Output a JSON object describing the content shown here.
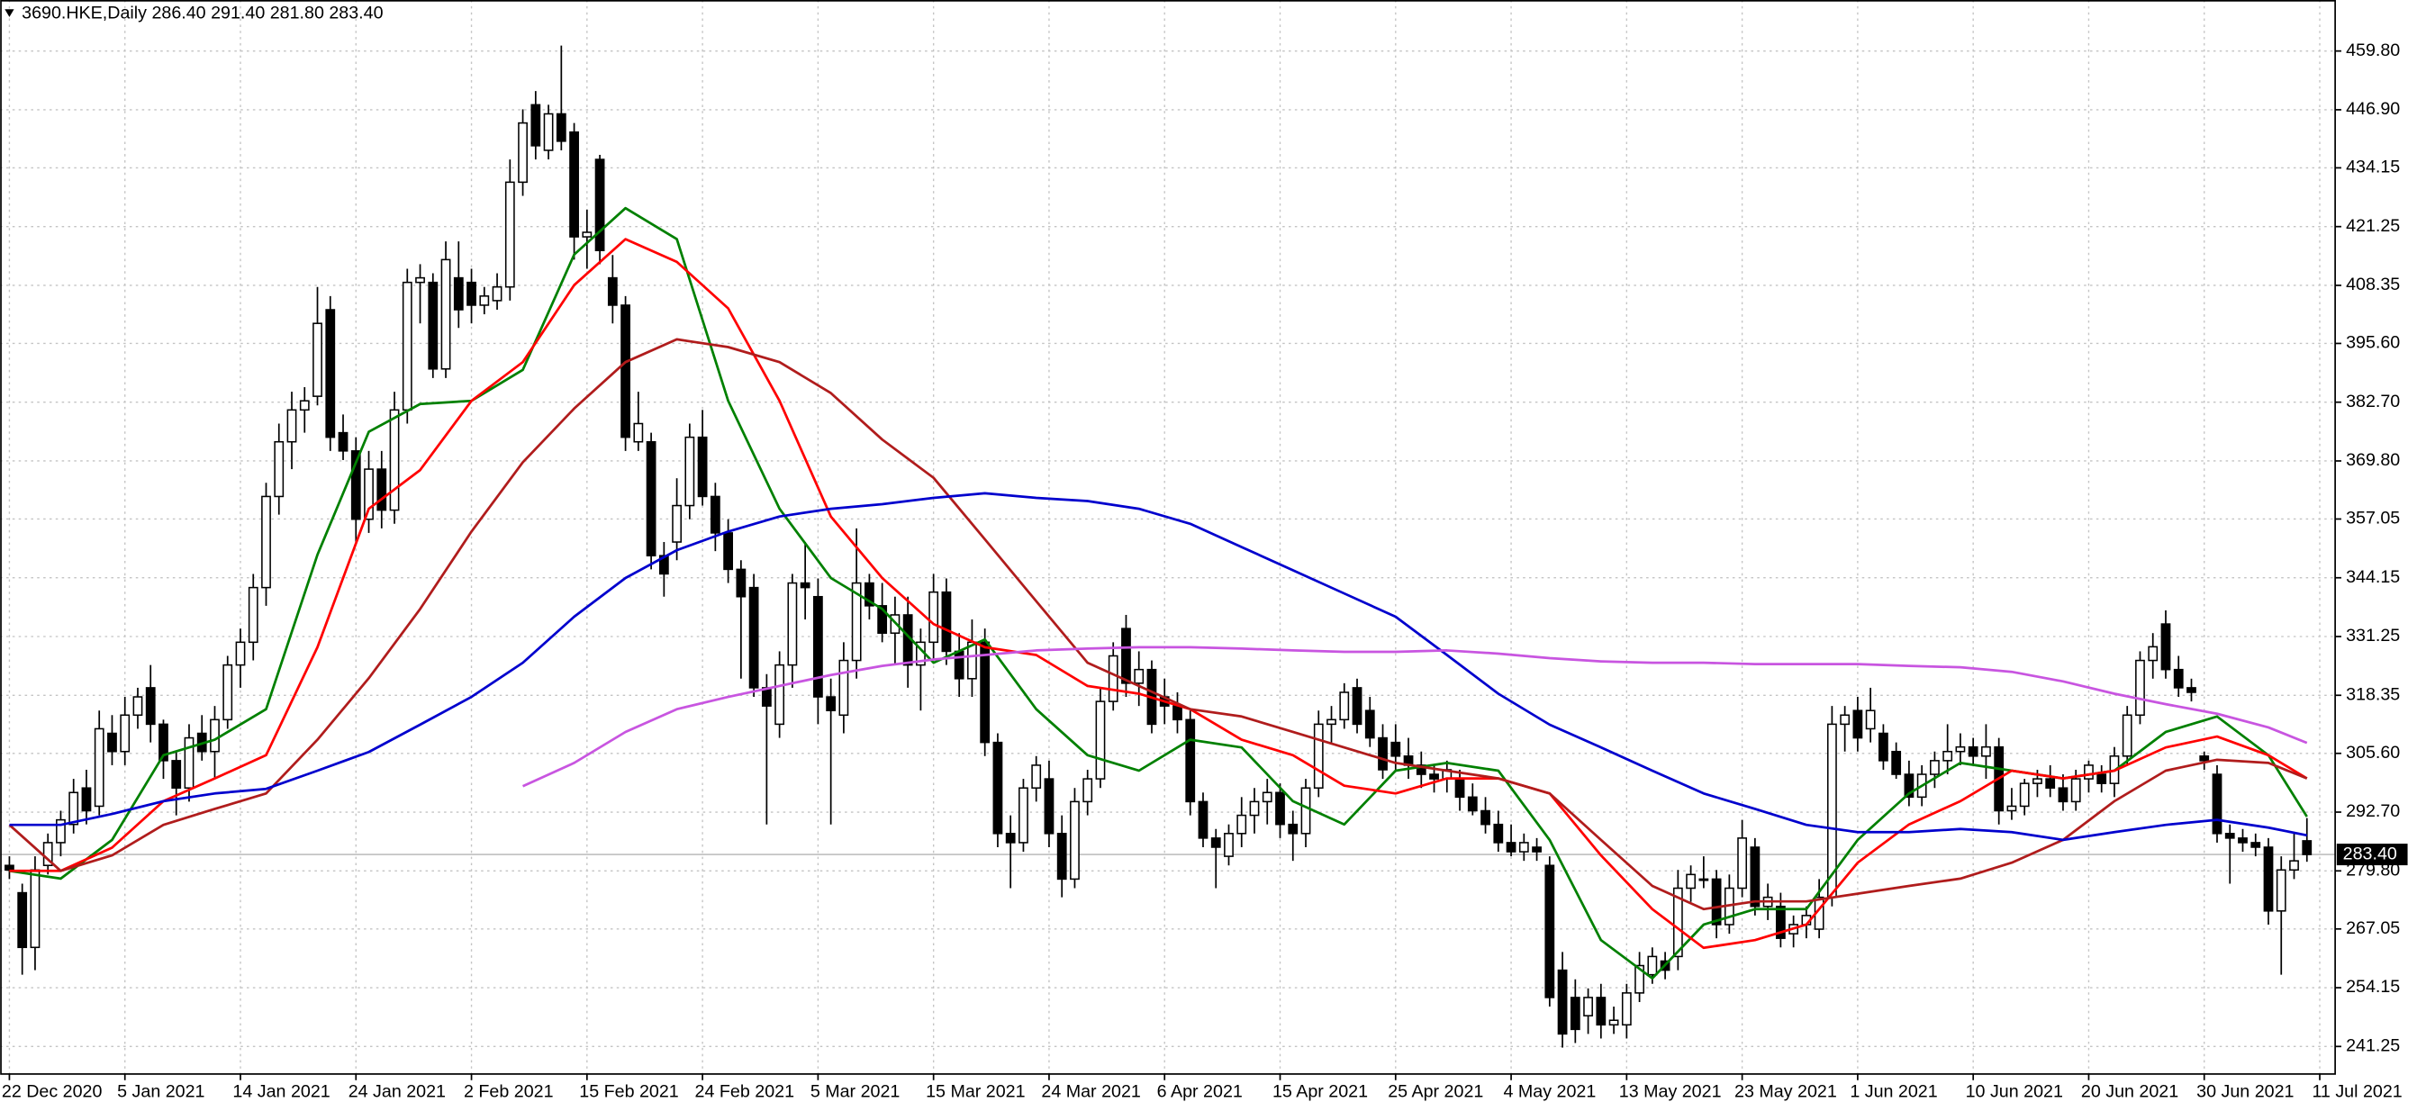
{
  "chart_data": {
    "type": "candlestick",
    "title": "3690.HKE,Daily  286.40 291.40 281.80 283.40",
    "open": [
      281,
      275,
      263,
      281,
      286,
      290,
      298,
      294,
      310,
      306,
      314,
      320,
      312,
      304,
      298,
      310,
      306,
      313,
      325,
      330,
      342,
      362,
      374,
      381,
      384,
      403,
      376,
      372,
      357,
      368,
      359,
      381,
      409,
      409,
      390,
      410,
      409,
      404,
      405,
      408,
      431,
      448,
      438,
      446,
      442,
      419,
      436,
      410,
      404,
      374,
      374,
      349,
      352,
      360,
      375,
      362,
      354,
      346,
      342,
      320,
      312,
      325,
      343,
      340,
      318,
      314,
      326,
      343,
      338,
      332,
      336,
      325,
      330,
      341,
      328,
      322,
      330,
      308,
      288,
      286,
      298,
      300,
      288,
      278,
      295,
      300,
      317,
      333,
      321,
      324,
      318,
      316,
      313,
      295,
      287,
      283,
      288,
      292,
      295,
      297,
      290,
      288,
      298,
      312,
      313,
      320,
      315,
      309,
      308,
      305,
      303,
      301,
      300,
      300,
      296,
      293,
      290,
      286,
      284,
      285,
      281,
      258,
      252,
      248,
      252,
      246,
      246,
      253,
      257,
      260,
      261,
      276,
      278,
      278,
      268,
      276,
      285,
      272,
      272,
      266,
      268,
      267,
      274,
      312,
      315,
      311,
      310,
      306,
      301,
      296,
      301,
      304,
      306,
      307,
      305,
      307,
      293,
      294,
      299,
      300,
      298,
      295,
      300,
      301,
      299,
      305,
      314,
      326,
      334,
      324,
      320,
      305,
      301,
      288,
      287,
      286,
      285,
      271,
      280,
      286.4
    ],
    "high": [
      283,
      277,
      283,
      288,
      293,
      300,
      302,
      315,
      314,
      318,
      320,
      325,
      313,
      306,
      312,
      314,
      316,
      327,
      333,
      345,
      365,
      378,
      385,
      386,
      408,
      406,
      380,
      375,
      372,
      372,
      385,
      412,
      413,
      411,
      418,
      418,
      412,
      408,
      411,
      436,
      447,
      451,
      448,
      461,
      444,
      425,
      437,
      415,
      406,
      385,
      376,
      352,
      366,
      378,
      381,
      365,
      357,
      348,
      345,
      323,
      328,
      345,
      352,
      344,
      322,
      330,
      355,
      345,
      343,
      340,
      340,
      333,
      345,
      344,
      332,
      335,
      333,
      310,
      292,
      300,
      305,
      304,
      292,
      298,
      302,
      320,
      330,
      336,
      328,
      326,
      322,
      319,
      315,
      297,
      289,
      290,
      296,
      298,
      300,
      299,
      293,
      300,
      315,
      316,
      321,
      322,
      318,
      312,
      312,
      309,
      306,
      303,
      304,
      302,
      299,
      296,
      293,
      290,
      288,
      287,
      283,
      262,
      256,
      254,
      255,
      250,
      255,
      262,
      263,
      262,
      280,
      281,
      283,
      280,
      279,
      291,
      287,
      277,
      275,
      270,
      272,
      278,
      316,
      316,
      318,
      320,
      312,
      308,
      304,
      303,
      306,
      312,
      310,
      309,
      312,
      309,
      298,
      300,
      302,
      303,
      301,
      302,
      304,
      303,
      307,
      316,
      328,
      332,
      337,
      327,
      322,
      306,
      303,
      290,
      289,
      288,
      287,
      283,
      288,
      291.4
    ],
    "low": [
      278,
      257,
      258,
      279,
      283,
      288,
      290,
      292,
      303,
      303,
      311,
      308,
      300,
      292,
      295,
      304,
      300,
      311,
      320,
      326,
      338,
      358,
      368,
      376,
      382,
      372,
      370,
      352,
      354,
      355,
      356,
      378,
      400,
      388,
      388,
      399,
      400,
      402,
      403,
      405,
      428,
      436,
      436,
      438,
      414,
      412,
      413,
      400,
      372,
      372,
      346,
      340,
      348,
      357,
      360,
      350,
      343,
      322,
      318,
      290,
      309,
      320,
      335,
      312,
      290,
      310,
      322,
      335,
      330,
      325,
      320,
      315,
      326,
      325,
      318,
      318,
      305,
      285,
      276,
      284,
      295,
      285,
      274,
      276,
      292,
      298,
      315,
      318,
      316,
      310,
      312,
      310,
      292,
      285,
      276,
      281,
      285,
      288,
      290,
      287,
      282,
      285,
      296,
      308,
      311,
      310,
      307,
      300,
      302,
      300,
      298,
      297,
      297,
      293,
      292,
      288,
      284,
      283,
      282,
      282,
      250,
      241,
      242,
      244,
      243,
      244,
      243,
      251,
      255,
      256,
      258,
      273,
      276,
      265,
      266,
      274,
      270,
      269,
      263,
      263,
      265,
      265,
      272,
      306,
      306,
      308,
      302,
      300,
      294,
      294,
      298,
      301,
      303,
      303,
      300,
      290,
      291,
      292,
      296,
      296,
      293,
      293,
      297,
      297,
      296,
      303,
      312,
      322,
      322,
      318,
      317,
      302,
      286,
      277,
      284,
      283,
      268,
      257,
      278,
      281.8
    ],
    "close": [
      280,
      263,
      280,
      286,
      291,
      297,
      293,
      311,
      306,
      314,
      318,
      312,
      304,
      298,
      309,
      306,
      313,
      325,
      330,
      342,
      362,
      374,
      381,
      383,
      400,
      375,
      372,
      357,
      368,
      359,
      381,
      409,
      410,
      390,
      414,
      403,
      404,
      406,
      408,
      431,
      444,
      439,
      446,
      440,
      419,
      420,
      416,
      404,
      375,
      378,
      349,
      345,
      360,
      375,
      362,
      354,
      346,
      340,
      320,
      316,
      325,
      343,
      342,
      318,
      315,
      326,
      343,
      338,
      332,
      336,
      325,
      330,
      341,
      328,
      322,
      330,
      308,
      288,
      286,
      298,
      303,
      288,
      278,
      295,
      300,
      317,
      327,
      321,
      324,
      312,
      316,
      313,
      295,
      287,
      285,
      288,
      292,
      295,
      297,
      290,
      288,
      298,
      312,
      313,
      319,
      312,
      309,
      302,
      305,
      303,
      301,
      300,
      302,
      296,
      293,
      290,
      286,
      284,
      286,
      284,
      252,
      244,
      245,
      252,
      246,
      247,
      253,
      259,
      261,
      258,
      276,
      279,
      278,
      268,
      276,
      287,
      272,
      274,
      265,
      268,
      270,
      274,
      312,
      314,
      309,
      315,
      304,
      301,
      296,
      301,
      304,
      306,
      307,
      305,
      307,
      293,
      294,
      299,
      300,
      298,
      295,
      300,
      303,
      299,
      305,
      314,
      326,
      329,
      324,
      320,
      319,
      304,
      288,
      287,
      286,
      285,
      271,
      280,
      282,
      283.4
    ],
    "bull_color": "#ffffff",
    "bear_color": "#000000",
    "lines": {
      "x": [
        0,
        4,
        8,
        12,
        16,
        20,
        24,
        28,
        32,
        36,
        40,
        44,
        48,
        52,
        56,
        60,
        64,
        68,
        72,
        76,
        80,
        84,
        88,
        92,
        96,
        100,
        104,
        108,
        112,
        116,
        120,
        124,
        128,
        132,
        136,
        140,
        144,
        148,
        152,
        156,
        160,
        164,
        168,
        172,
        176,
        179
      ],
      "series": [
        {
          "color": "#008000",
          "values": [
            279.8,
            278.1,
            286.6,
            305.2,
            308.6,
            315.3,
            349.2,
            376.2,
            382.3,
            383.0,
            389.8,
            415.1,
            425.3,
            418.5,
            383.0,
            359.3,
            344.1,
            337.3,
            325.5,
            330.6,
            315.3,
            305.2,
            301.8,
            308.6,
            306.9,
            295.1,
            290.0,
            301.8,
            303.5,
            301.8,
            286.6,
            264.6,
            256.2,
            268.0,
            271.4,
            271.4,
            286.6,
            296.8,
            303.5,
            301.8,
            300.1,
            301.8,
            310.3,
            313.7,
            305.2,
            291.7
          ]
        },
        {
          "color": "#ff0000",
          "values": [
            279.8,
            279.8,
            284.9,
            295.1,
            300.1,
            305.2,
            328.9,
            359.3,
            367.8,
            383.0,
            391.5,
            408.4,
            418.5,
            413.5,
            403.3,
            383.0,
            357.6,
            344.1,
            334.0,
            328.9,
            327.2,
            320.4,
            318.7,
            315.3,
            308.6,
            305.2,
            298.5,
            296.8,
            300.1,
            300.1,
            296.8,
            283.2,
            271.4,
            262.9,
            264.6,
            268.0,
            281.6,
            290.0,
            295.1,
            301.8,
            300.1,
            301.8,
            306.9,
            309.3,
            305.2,
            300.1
          ]
        },
        {
          "color": "#b01c1c",
          "values": [
            289.9,
            279.8,
            283.2,
            289.9,
            293.4,
            296.8,
            308.6,
            322.1,
            337.3,
            354.3,
            369.5,
            381.3,
            391.5,
            396.5,
            394.8,
            391.5,
            384.7,
            374.5,
            366.1,
            352.6,
            339.0,
            325.5,
            320.4,
            315.3,
            313.7,
            310.3,
            306.9,
            303.5,
            301.8,
            300.1,
            296.8,
            286.6,
            276.5,
            271.4,
            273.1,
            273.1,
            274.8,
            276.5,
            278.1,
            281.6,
            286.6,
            295.1,
            301.8,
            304.2,
            303.5,
            300.1
          ]
        },
        {
          "color": "#0000cd",
          "values": [
            289.9,
            289.9,
            292.3,
            295.1,
            296.8,
            297.8,
            301.8,
            305.9,
            311.9,
            318.0,
            325.5,
            335.6,
            344.1,
            350.2,
            354.3,
            357.6,
            359.3,
            360.3,
            361.7,
            362.7,
            361.7,
            361.0,
            359.3,
            356.0,
            350.9,
            345.8,
            340.7,
            335.6,
            327.2,
            318.7,
            311.9,
            306.9,
            301.8,
            296.8,
            293.4,
            289.9,
            288.3,
            288.3,
            289.0,
            288.3,
            286.6,
            288.3,
            289.9,
            291.0,
            289.3,
            287.6
          ]
        },
        {
          "color": "#c855e0",
          "values": [
            null,
            null,
            null,
            null,
            null,
            null,
            null,
            null,
            null,
            null,
            298.4,
            303.5,
            310.3,
            315.3,
            318.0,
            320.4,
            322.8,
            324.8,
            326.2,
            327.2,
            328.2,
            328.6,
            328.9,
            328.9,
            328.6,
            328.2,
            327.9,
            327.9,
            328.2,
            327.5,
            326.5,
            325.8,
            325.5,
            325.5,
            325.2,
            325.2,
            325.2,
            324.8,
            324.5,
            323.5,
            321.4,
            318.7,
            316.4,
            314.3,
            311.3,
            307.9
          ]
        }
      ]
    },
    "xlim": [
      -0.72,
      181.2
    ],
    "xticks": [
      {
        "value": 0,
        "label": "22 Dec 2020"
      },
      {
        "value": 9,
        "label": "5 Jan 2021"
      },
      {
        "value": 18,
        "label": "14 Jan 2021"
      },
      {
        "value": 27,
        "label": "24 Jan 2021"
      },
      {
        "value": 36,
        "label": "2 Feb 2021"
      },
      {
        "value": 45,
        "label": "15 Feb 2021"
      },
      {
        "value": 54,
        "label": "24 Feb 2021"
      },
      {
        "value": 63,
        "label": "5 Mar 2021"
      },
      {
        "value": 72,
        "label": "15 Mar 2021"
      },
      {
        "value": 81,
        "label": "24 Mar 2021"
      },
      {
        "value": 90,
        "label": "6 Apr 2021"
      },
      {
        "value": 99,
        "label": "15 Apr 2021"
      },
      {
        "value": 108,
        "label": "25 Apr 2021"
      },
      {
        "value": 117,
        "label": "4 May 2021"
      },
      {
        "value": 126,
        "label": "13 May 2021"
      },
      {
        "value": 135,
        "label": "23 May 2021"
      },
      {
        "value": 144,
        "label": "1 Jun 2021"
      },
      {
        "value": 153,
        "label": "10 Jun 2021"
      },
      {
        "value": 162,
        "label": "20 Jun 2021"
      },
      {
        "value": 171,
        "label": "30 Jun 2021"
      },
      {
        "value": 180,
        "label": "11 Jul 2021"
      }
    ],
    "ylim": [
      235.2,
      471.0
    ],
    "yticks": [
      241.25,
      254.15,
      267.05,
      {
        "value": 279.8,
        "label": "279.80"
      },
      {
        "value": 292.7,
        "label": "292.70"
      },
      {
        "value": 305.6,
        "label": "305.60"
      },
      318.35,
      331.25,
      344.15,
      357.05,
      {
        "value": 369.8,
        "label": "369.80"
      },
      {
        "value": 382.7,
        "label": "382.70"
      },
      {
        "value": 395.6,
        "label": "395.60"
      },
      408.35,
      421.25,
      434.15,
      {
        "value": 446.9,
        "label": "446.90"
      },
      {
        "value": 459.8,
        "label": "459.80"
      }
    ],
    "last_price": {
      "value": 283.4,
      "label": "283.40"
    },
    "grid": true
  }
}
